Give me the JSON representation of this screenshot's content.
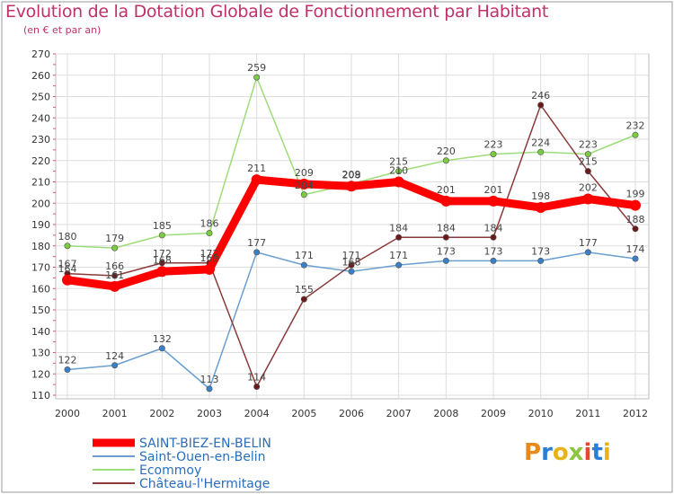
{
  "header": {
    "title": "Evolution de la Dotation Globale de Fonctionnement par Habitant",
    "subtitle": "(en € et par an)"
  },
  "logo": {
    "text": "Proxiti",
    "letters": [
      "P",
      "r",
      "o",
      "x",
      "i",
      "t",
      "i"
    ],
    "colors": [
      "#e88a1a",
      "#2a7ed8",
      "#e8b21a",
      "#8cc63f",
      "#e8462a",
      "#2a7ed8",
      "#e8b21a"
    ]
  },
  "chart_data": {
    "type": "line",
    "title": "Evolution de la Dotation Globale de Fonctionnement par Habitant",
    "subtitle": "(en € et par an)",
    "xlabel": "",
    "ylabel": "",
    "ylim": [
      110,
      270
    ],
    "yticks": [
      110,
      120,
      130,
      140,
      150,
      160,
      170,
      180,
      190,
      200,
      210,
      220,
      230,
      240,
      250,
      260,
      270
    ],
    "grid": true,
    "legend_position": "bottom-left",
    "x": [
      "2000",
      "2001",
      "2002",
      "2003",
      "2004",
      "2005",
      "2006",
      "2007",
      "2008",
      "2009",
      "2010",
      "2011",
      "2012"
    ],
    "series": [
      {
        "name": "SAINT-BIEZ-EN-BELIN",
        "values": [
          164,
          161,
          168,
          169,
          211,
          209,
          208,
          210,
          201,
          201,
          198,
          202,
          199
        ],
        "labels": [
          "164",
          "161",
          "168",
          "169",
          "211",
          "209",
          "208",
          "210",
          "201",
          "201",
          "198",
          "202",
          "199"
        ],
        "color": "#ff0000",
        "marker": "#ff0000",
        "highlight": true
      },
      {
        "name": "Saint-Ouen-en-Belin",
        "values": [
          122,
          124,
          132,
          113,
          177,
          171,
          168,
          171,
          173,
          173,
          173,
          177,
          174
        ],
        "labels": [
          "122",
          "124",
          "132",
          "113",
          "177",
          "171",
          "168",
          "171",
          "173",
          "173",
          "173",
          "177",
          "174"
        ],
        "color": "#6a9fd0",
        "marker": "#3a80c8",
        "highlight": false
      },
      {
        "name": "Ecommoy",
        "values": [
          180,
          179,
          185,
          186,
          259,
          204,
          209,
          215,
          220,
          223,
          224,
          223,
          232
        ],
        "labels": [
          "180",
          "179",
          "185",
          "186",
          "259",
          "204",
          "209",
          "215",
          "220",
          "223",
          "224",
          "223",
          "232"
        ],
        "color": "#9edc7a",
        "marker": "#7acc40",
        "highlight": false
      },
      {
        "name": "Château-l'Hermitage",
        "values": [
          167,
          166,
          172,
          172,
          114,
          155,
          171,
          184,
          184,
          184,
          246,
          215,
          188
        ],
        "labels": [
          "167",
          "166",
          "172",
          "172",
          "114",
          "155",
          "171",
          "184",
          "184",
          "184",
          "246",
          "215",
          "188"
        ],
        "color": "#8a3a3a",
        "marker": "#6a1a1a",
        "highlight": false
      }
    ]
  }
}
